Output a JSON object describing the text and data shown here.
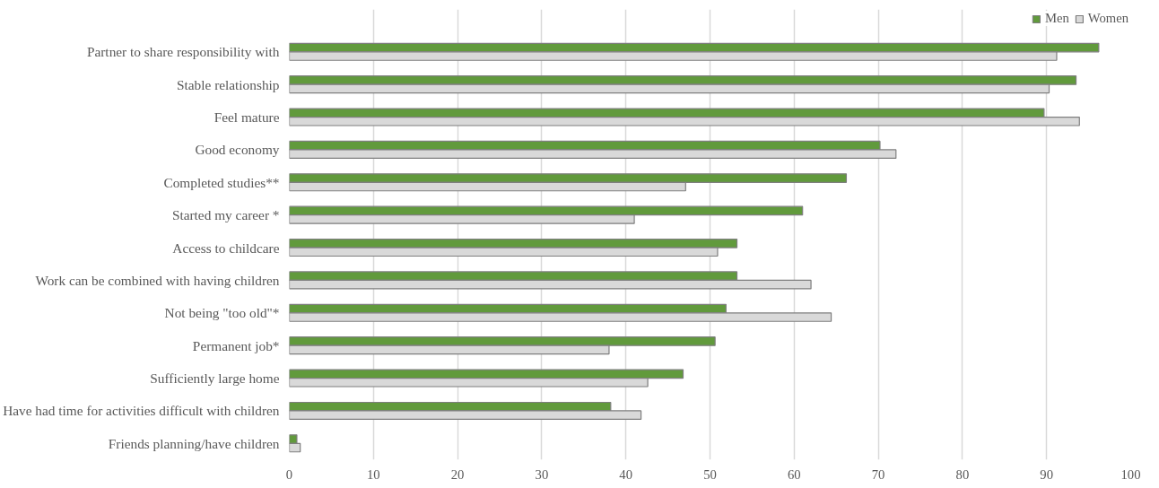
{
  "chart_data": {
    "type": "bar",
    "orientation": "horizontal",
    "categories": [
      "Partner to share responsibility with",
      "Stable relationship",
      "Feel mature",
      "Good economy",
      "Completed studies**",
      "Started my career *",
      "Access to childcare",
      "Work can be combined with having children",
      "Not being \"too old\"*",
      "Permanent job*",
      "Sufficiently large home",
      "Have had time for activities difficult with children",
      "Friends planning/have children"
    ],
    "series": [
      {
        "name": "Men",
        "color": "#619a3c",
        "values": [
          96.2,
          93.5,
          89.7,
          70.2,
          66.2,
          61.0,
          53.2,
          53.2,
          51.9,
          50.6,
          46.8,
          38.2,
          0.9
        ]
      },
      {
        "name": "Women",
        "color": "#d9d9d9",
        "values": [
          91.2,
          90.3,
          93.9,
          72.1,
          47.1,
          41.0,
          50.9,
          62.0,
          64.4,
          38.0,
          42.6,
          41.8,
          1.3
        ]
      }
    ],
    "xlim": [
      0,
      100
    ],
    "xticks": [
      0,
      10,
      20,
      30,
      40,
      50,
      60,
      70,
      80,
      90,
      100
    ],
    "grid": "x",
    "legend": "top right"
  }
}
